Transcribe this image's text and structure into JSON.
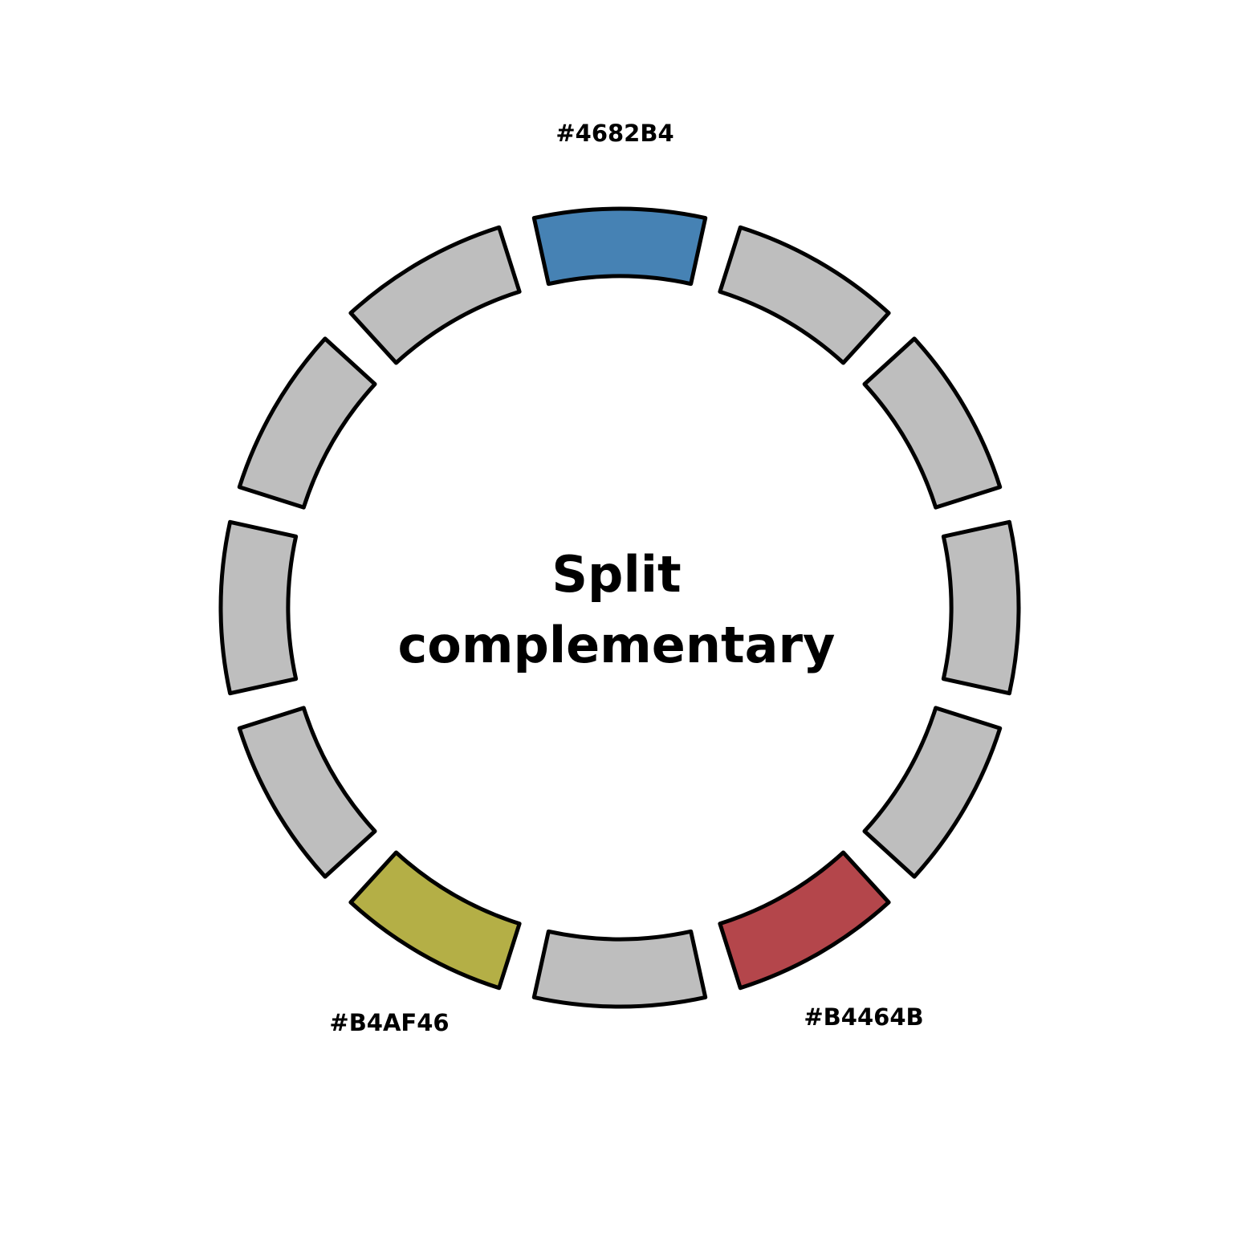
{
  "title": {
    "line1": "Split",
    "line2": "complementary"
  },
  "wheel": {
    "segment_count": 12,
    "inactive_color": "#BEBEBE",
    "outline_color": "#000000",
    "highlights": [
      {
        "index": 0,
        "color": "#4682B4",
        "label": "#4682B4"
      },
      {
        "index": 5,
        "color": "#B4464B",
        "label": "#B4464B"
      },
      {
        "index": 7,
        "color": "#B4AF46",
        "label": "#B4AF46"
      }
    ]
  }
}
